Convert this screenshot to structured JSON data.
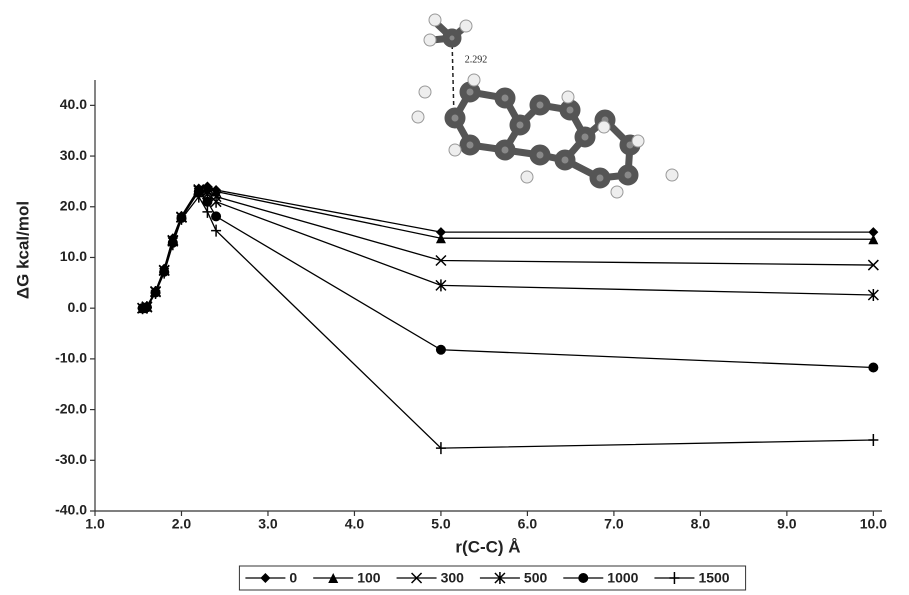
{
  "chart_data": {
    "type": "line",
    "xlabel": "r(C-C) Å",
    "ylabel": "ΔG kcal/mol",
    "annotation": "2.292",
    "x": [
      1.55,
      1.6,
      1.7,
      1.8,
      1.9,
      2.0,
      2.2,
      2.3,
      2.4,
      5.0,
      10.0
    ],
    "series": [
      {
        "name": "0",
        "color": "#000000",
        "marker": "diamond",
        "values": [
          0.0,
          0.4,
          3.4,
          7.8,
          13.8,
          18.2,
          23.6,
          24.0,
          23.3,
          15.0,
          15.0
        ]
      },
      {
        "name": "100",
        "color": "#000000",
        "marker": "triangle",
        "values": [
          0.0,
          0.3,
          3.3,
          7.6,
          13.6,
          18.1,
          23.5,
          23.9,
          23.0,
          13.8,
          13.6
        ]
      },
      {
        "name": "300",
        "color": "#000000",
        "marker": "x",
        "values": [
          0.0,
          0.3,
          3.3,
          7.5,
          13.4,
          18.0,
          23.4,
          23.0,
          22.0,
          9.4,
          8.5
        ]
      },
      {
        "name": "500",
        "color": "#000000",
        "marker": "asterisk",
        "values": [
          0.0,
          0.2,
          3.2,
          7.4,
          13.2,
          17.9,
          23.2,
          22.5,
          21.0,
          4.5,
          2.6
        ]
      },
      {
        "name": "1000",
        "color": "#000000",
        "marker": "circle",
        "values": [
          0.0,
          0.2,
          3.1,
          7.2,
          12.9,
          17.8,
          23.0,
          21.0,
          18.1,
          -8.2,
          -11.7
        ]
      },
      {
        "name": "1500",
        "color": "#000000",
        "marker": "plus",
        "values": [
          0.0,
          0.1,
          3.0,
          7.0,
          12.6,
          17.6,
          22.0,
          19.0,
          15.3,
          -27.6,
          -26.0
        ]
      }
    ],
    "xlim": [
      1.0,
      10.1
    ],
    "ylim": [
      -40,
      45
    ],
    "xticks": [
      {
        "value": 1,
        "label": "1.0"
      },
      {
        "value": 2,
        "label": "2.0"
      },
      {
        "value": 3,
        "label": "3.0"
      },
      {
        "value": 4,
        "label": "4.0"
      },
      {
        "value": 5,
        "label": "5.0"
      },
      {
        "value": 6,
        "label": "6.0"
      },
      {
        "value": 7,
        "label": "7.0"
      },
      {
        "value": 8,
        "label": "8.0"
      },
      {
        "value": 9,
        "label": "9.0"
      },
      {
        "value": 10,
        "label": "10.0"
      }
    ],
    "yticks": [
      {
        "value": -40,
        "label": "-40.0"
      },
      {
        "value": -30,
        "label": "-30.0"
      },
      {
        "value": -20,
        "label": "-20.0"
      },
      {
        "value": -10,
        "label": "-10.0"
      },
      {
        "value": 0,
        "label": "0.0"
      },
      {
        "value": 10,
        "label": "10.0"
      },
      {
        "value": 20,
        "label": "20.0"
      },
      {
        "value": 30,
        "label": "30.0"
      },
      {
        "value": 40,
        "label": "40.0"
      }
    ],
    "grid": false,
    "legend": "bottom"
  }
}
